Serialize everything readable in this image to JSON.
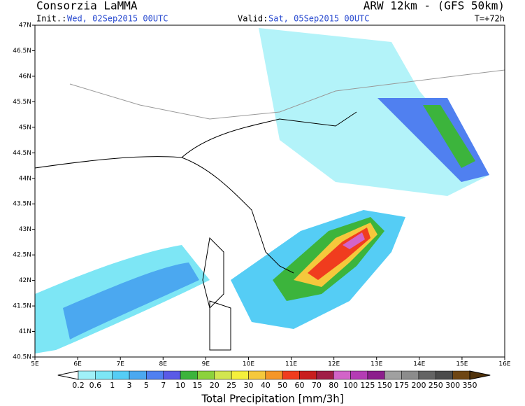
{
  "header": {
    "title": "Consorzia LaMMA",
    "model": "ARW 12km - (GFS 50km)",
    "init_label": "Init.:",
    "init": "Wed, 02Sep2015 00UTC",
    "valid_label": "Valid:",
    "valid": "Sat, 05Sep2015 00UTC",
    "lead": "T=+72h"
  },
  "map": {
    "lat_labels": [
      "47N",
      "46.5N",
      "46N",
      "45.5N",
      "45N",
      "44.5N",
      "44N",
      "43.5N",
      "43N",
      "42.5N",
      "42N",
      "41.5N",
      "41N",
      "40.5N"
    ],
    "lon_labels": [
      "5E",
      "6E",
      "7E",
      "8E",
      "9E",
      "10E",
      "11E",
      "12E",
      "13E",
      "14E",
      "15E",
      "16E"
    ]
  },
  "legend": {
    "title": "Total Precipitation [mm/3h]",
    "levels": [
      "0.2",
      "0.6",
      "1",
      "3",
      "5",
      "7",
      "10",
      "15",
      "20",
      "25",
      "30",
      "40",
      "50",
      "60",
      "70",
      "80",
      "100",
      "125",
      "150",
      "175",
      "200",
      "250",
      "300",
      "350"
    ],
    "colors": [
      "#ffffff",
      "#a0f0f8",
      "#7de6f5",
      "#55cdf5",
      "#4ba8f0",
      "#5080f0",
      "#5a5ae6",
      "#3cb43c",
      "#8cd23c",
      "#d2e650",
      "#f5f03c",
      "#f5c83c",
      "#f59628",
      "#f03c1e",
      "#c81e1e",
      "#a01e46",
      "#d264c8",
      "#b43cb4",
      "#8c1e8c",
      "#a0a0a0",
      "#8c8c8c",
      "#646464",
      "#4b4b4b",
      "#6e4614",
      "#50320a"
    ]
  }
}
